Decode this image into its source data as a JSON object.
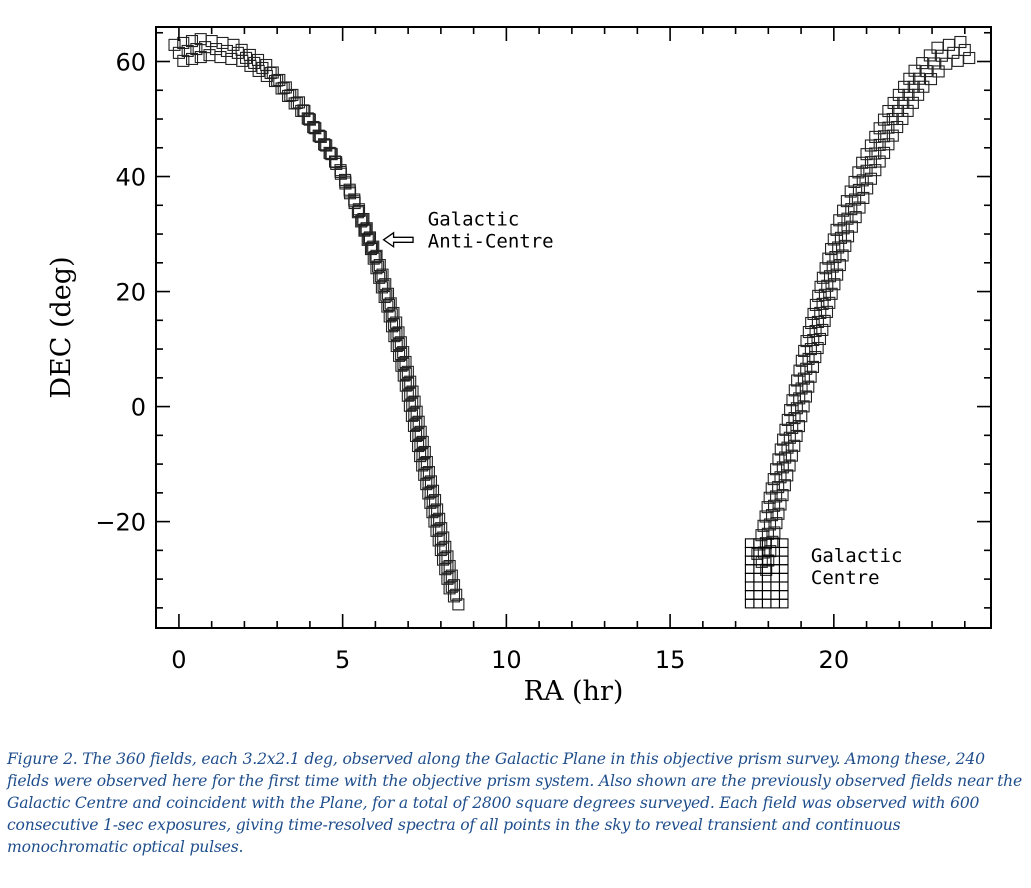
{
  "chart_data": {
    "type": "scatter",
    "marker": "open-square",
    "xlabel": "RA (hr)",
    "ylabel": "DEC (deg)",
    "xlim": [
      -0.7,
      24.8
    ],
    "ylim": [
      -38.5,
      66
    ],
    "xticks": [
      0,
      5,
      10,
      15,
      20
    ],
    "yticks": [
      -20,
      0,
      20,
      40,
      60
    ],
    "grid": false,
    "galactic_plane_trace": {
      "description_none": "",
      "ra": [
        0.0,
        0.8,
        1.8,
        2.8,
        3.8,
        4.8,
        5.5,
        6.0,
        6.5,
        7.0,
        7.5,
        8.0,
        8.4,
        17.8,
        18.3,
        18.8,
        19.3,
        19.8,
        20.3,
        21.0,
        21.8,
        22.6,
        23.3,
        24.0
      ],
      "dec": [
        61.5,
        62.5,
        61.5,
        58.0,
        51.5,
        42.5,
        34.0,
        26.0,
        16.0,
        4.0,
        -10.0,
        -23.0,
        -33.0,
        -27.0,
        -14.0,
        -2.0,
        10.0,
        21.0,
        31.0,
        41.0,
        50.0,
        57.0,
        61.0,
        62.0
      ]
    },
    "galactic_centre_field": {
      "ra": [
        17.3,
        18.6
      ],
      "dec": [
        -35,
        -23
      ]
    },
    "annotations": [
      {
        "lines": [
          "Galactic",
          "Anti-Centre"
        ],
        "ra": 7.6,
        "dec": 31.5
      },
      {
        "lines": [
          "Galactic",
          "Centre"
        ],
        "ra": 19.3,
        "dec": -27.0
      }
    ],
    "arrow": {
      "from_ra": 7.15,
      "to_ra": 6.25,
      "dec": 29.0
    }
  },
  "caption": "Figure 2. The 360 fields, each 3.2x2.1 deg, observed along the Galactic Plane in this objective prism survey.  Among these, 240 fields were observed here for the first time with the objective prism system. Also shown are the previously observed fields near the Galactic Centre and coincident with the Plane, for a total of 2800 square degrees surveyed. Each field was observed with 600 consecutive 1-sec exposures, giving time-resolved spectra of all points in the sky to reveal transient and continuous monochromatic optical pulses."
}
